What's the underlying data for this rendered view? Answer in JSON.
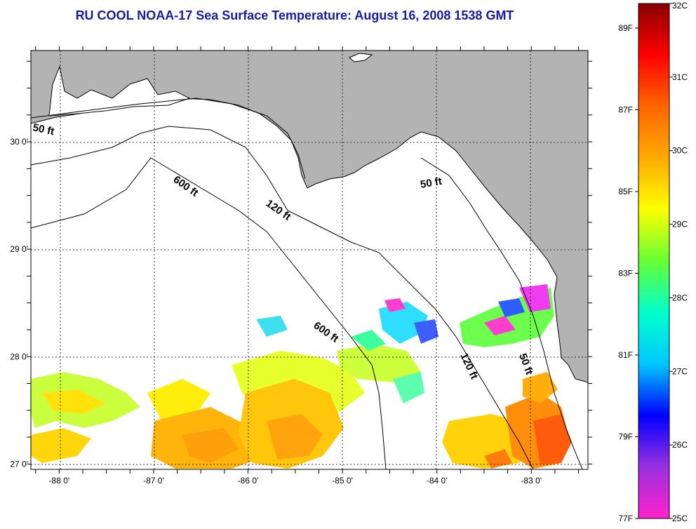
{
  "title": "RU COOL  NOAA-17  Sea Surface Temperature:  August 16, 2008 1538 GMT",
  "map": {
    "lon_range": [
      -88.3,
      -82.4
    ],
    "lat_range": [
      26.95,
      30.85
    ],
    "lon_ticks": [
      {
        "value": -88,
        "label": "-88 0'"
      },
      {
        "value": -87,
        "label": "-87 0'"
      },
      {
        "value": -86,
        "label": "-86 0'"
      },
      {
        "value": -85,
        "label": "-85 0'"
      },
      {
        "value": -84,
        "label": "-84 0'"
      },
      {
        "value": -83,
        "label": "-83 0'"
      }
    ],
    "lat_ticks": [
      {
        "value": 30,
        "label": "30 0'"
      },
      {
        "value": 29,
        "label": "29 0'"
      },
      {
        "value": 28,
        "label": "28 0'"
      },
      {
        "value": 27,
        "label": "27 0'"
      }
    ],
    "contour_labels": [
      "50 ft",
      "600 ft",
      "120 ft",
      "50 ft",
      "600 ft",
      "120 ft",
      "50 ft"
    ],
    "land_color": "#b3b3b3",
    "water_color": "#ffffff"
  },
  "colorbar": {
    "range_c": [
      25,
      32
    ],
    "fahrenheit_labels": [
      {
        "value": 89,
        "label": "89F"
      },
      {
        "value": 87,
        "label": "87F"
      },
      {
        "value": 85,
        "label": "85F"
      },
      {
        "value": 83,
        "label": "83F"
      },
      {
        "value": 81,
        "label": "81F"
      },
      {
        "value": 79,
        "label": "79F"
      },
      {
        "value": 77,
        "label": "77F"
      }
    ],
    "celsius_labels": [
      {
        "value": 32,
        "label": "32C"
      },
      {
        "value": 31,
        "label": "31C"
      },
      {
        "value": 30,
        "label": "30C"
      },
      {
        "value": 29,
        "label": "29C"
      },
      {
        "value": 28,
        "label": "28C"
      },
      {
        "value": 27,
        "label": "27C"
      },
      {
        "value": 26,
        "label": "26C"
      },
      {
        "value": 25,
        "label": "25C"
      }
    ],
    "stops": [
      "#ff22cc",
      "#9a30e0",
      "#0000ff",
      "#00c8ff",
      "#00ffcc",
      "#66ff33",
      "#ffff00",
      "#ffaa00",
      "#ff6600",
      "#ff0000",
      "#880000"
    ]
  }
}
